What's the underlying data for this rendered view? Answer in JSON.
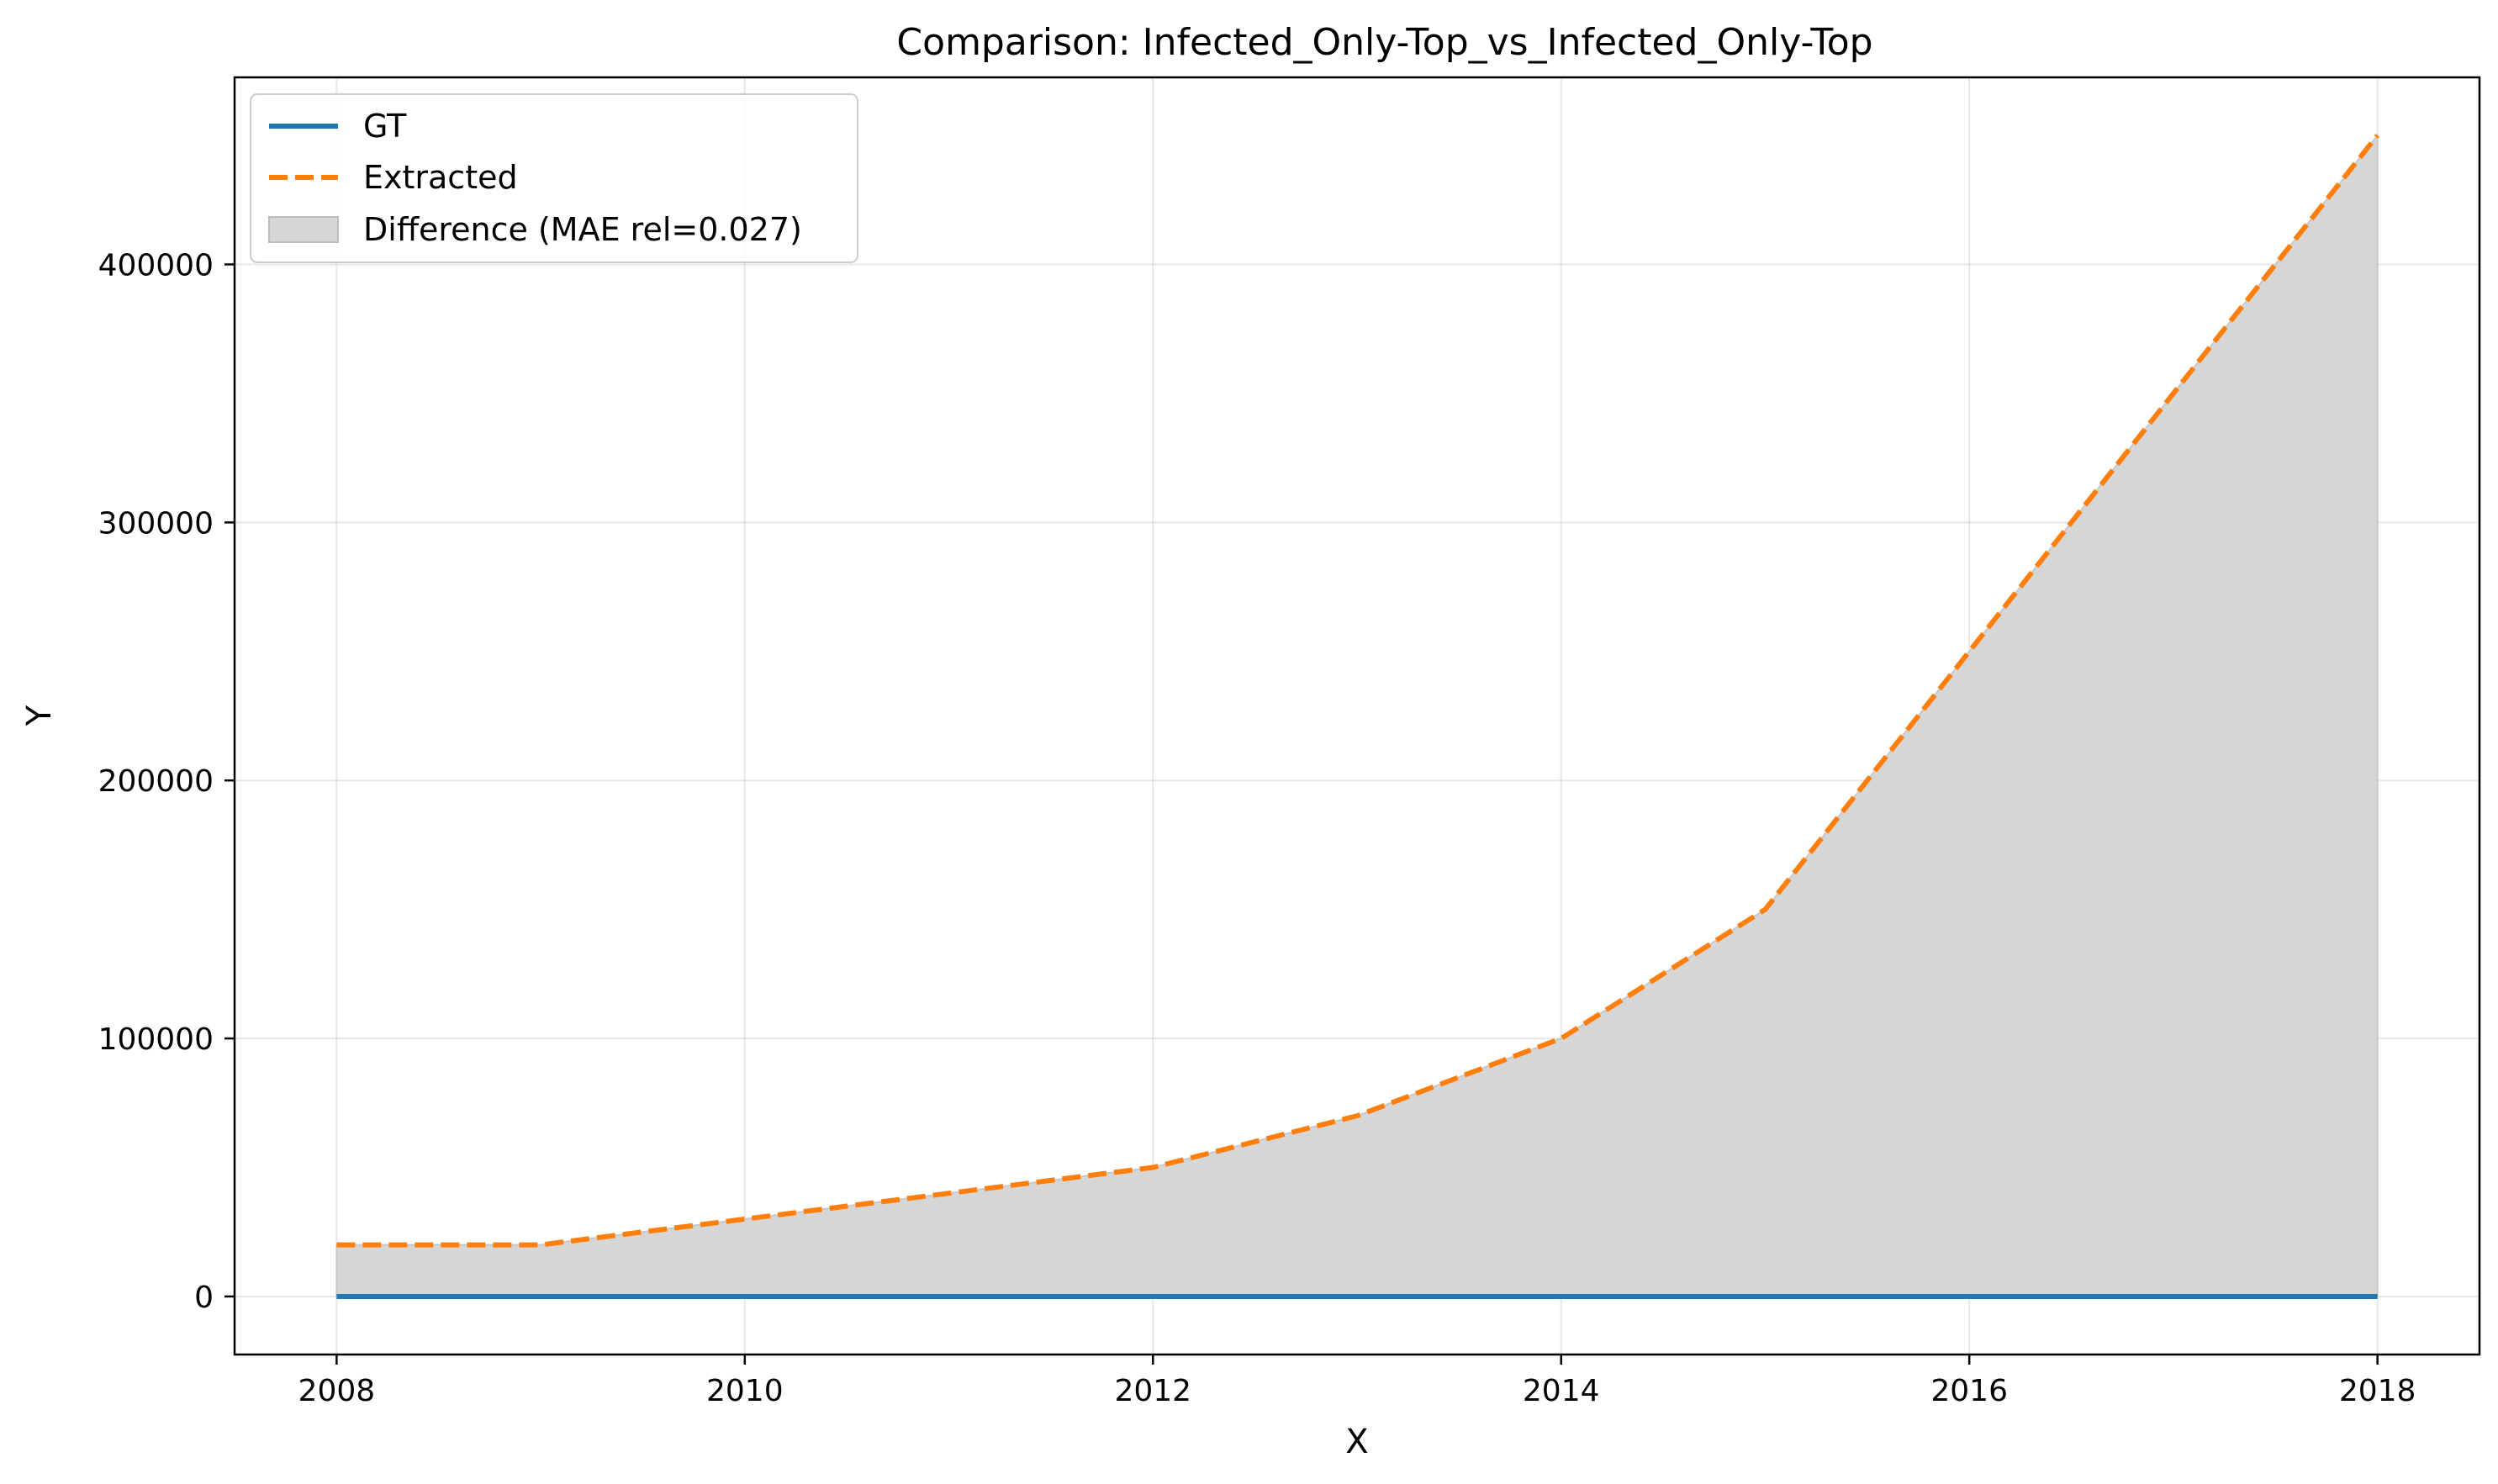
{
  "chart_data": {
    "type": "line",
    "title": "Comparison: Infected_Only-Top_vs_Infected_Only-Top",
    "xlabel": "X",
    "ylabel": "Y",
    "xlim": [
      2007.5,
      2018.5
    ],
    "ylim": [
      -22500,
      472500
    ],
    "xticks": [
      2008,
      2010,
      2012,
      2014,
      2016,
      2018
    ],
    "xtick_labels": [
      "2008",
      "2010",
      "2012",
      "2014",
      "2016",
      "2018"
    ],
    "yticks": [
      0,
      100000,
      200000,
      300000,
      400000
    ],
    "ytick_labels": [
      "0",
      "100000",
      "200000",
      "300000",
      "400000"
    ],
    "grid": true,
    "legend_position": "top-left",
    "x": [
      2008,
      2009,
      2010,
      2011,
      2012,
      2013,
      2014,
      2015,
      2016,
      2017,
      2018
    ],
    "series": [
      {
        "name": "GT",
        "style": "solid",
        "color": "#1f77b4",
        "values": [
          0,
          0,
          0,
          0,
          0,
          0,
          0,
          0,
          0,
          0,
          0
        ]
      },
      {
        "name": "Extracted",
        "style": "dashed",
        "color": "#ff7f0e",
        "values": [
          20000,
          20000,
          30000,
          40000,
          50000,
          70000,
          100000,
          150000,
          250000,
          350000,
          450000
        ]
      }
    ],
    "fill": {
      "name": "Difference (MAE rel=0.027)",
      "color": "#d6d6d6"
    }
  }
}
